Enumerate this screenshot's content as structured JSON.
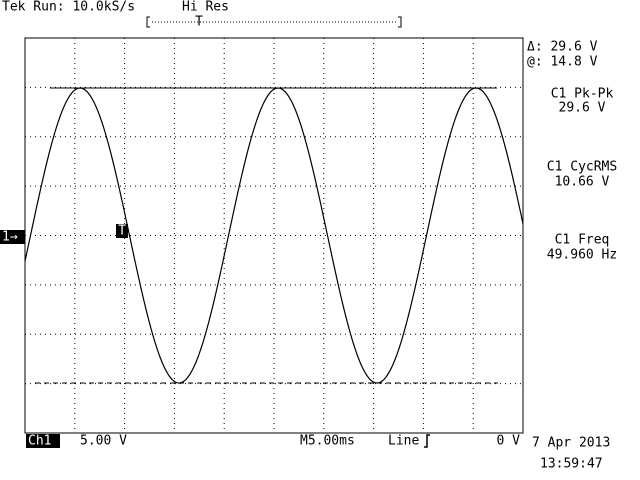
{
  "header": {
    "status": "Tek Run: 10.0kS/s",
    "mode": "Hi Res"
  },
  "markers": {
    "channel": "1→",
    "trigger": "T"
  },
  "readouts": {
    "cursor_delta": "Δ: 29.6 V",
    "cursor_at": "@: 14.8 V",
    "measurements": [
      {
        "label": "C1 Pk-Pk",
        "value": "29.6 V"
      },
      {
        "label": "C1 CycRMS",
        "value": "10.66 V"
      },
      {
        "label": "C1 Freq",
        "value": "49.960 Hz"
      }
    ]
  },
  "footer": {
    "channel": "Ch1",
    "scale": "5.00 V",
    "timebase": "M5.00ms",
    "trigger_source": "Line",
    "trigger_level": "0 V",
    "date": "7 Apr 2013",
    "time": "13:59:47"
  }
}
